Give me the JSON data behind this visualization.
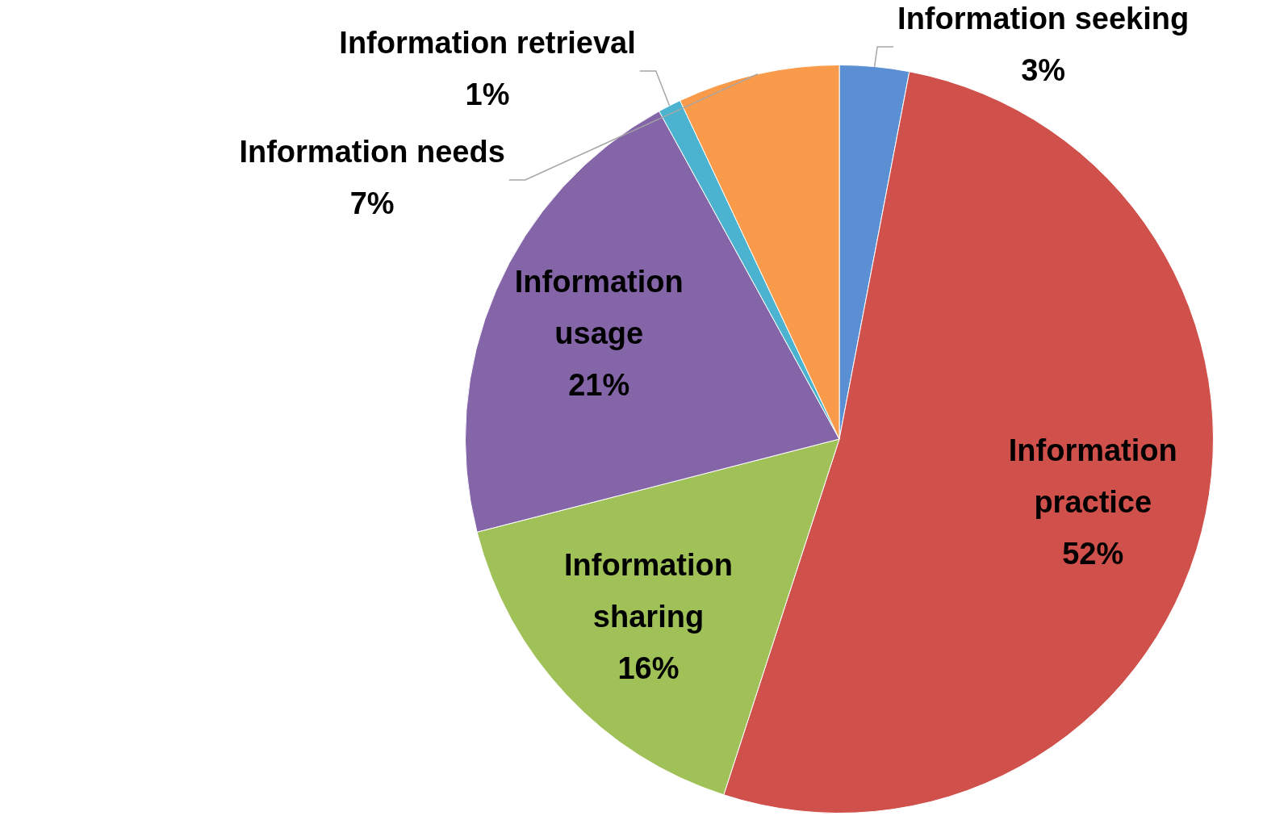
{
  "chart_data": {
    "type": "pie",
    "categories": [
      "Information seeking",
      "Information practice",
      "Information sharing",
      "Information usage",
      "Information retrieval",
      "Information needs"
    ],
    "values": [
      3,
      52,
      16,
      21,
      1,
      7
    ],
    "colors": [
      "#5a8fd3",
      "#d0504c",
      "#9fc158",
      "#8465a8",
      "#4bb3cf",
      "#f99b4a"
    ],
    "value_labels": [
      "3%",
      "52%",
      "16%",
      "21%",
      "1%",
      "7%"
    ],
    "legend": false
  }
}
